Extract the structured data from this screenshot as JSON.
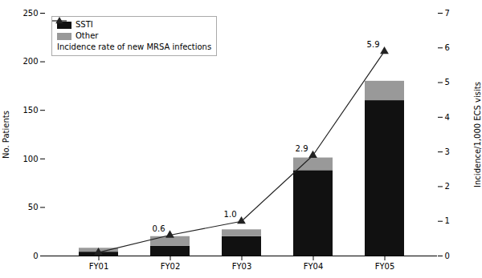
{
  "chart_data": {
    "type": "bar",
    "stacked": true,
    "categories": [
      "FY01",
      "FY02",
      "FY03",
      "FY04",
      "FY05"
    ],
    "series": [
      {
        "name": "SSTI",
        "color": "#111111",
        "values": [
          4,
          10,
          20,
          88,
          160
        ]
      },
      {
        "name": "Other",
        "color": "#999999",
        "values": [
          4,
          10,
          7,
          13,
          20
        ]
      },
      {
        "name": "Incidence rate of new MRSA infections",
        "type": "line",
        "axis": "y2",
        "color": "#222222",
        "marker": "triangle",
        "values": [
          0.1,
          0.6,
          1.0,
          2.9,
          5.9
        ],
        "data_labels": true,
        "value_labels": [
          null,
          "0.6",
          "1.0",
          "2.9",
          "5.9"
        ]
      }
    ],
    "ylim": [
      0,
      250
    ],
    "yticks": [
      0,
      50,
      100,
      150,
      200,
      250
    ],
    "y2lim": [
      0,
      7
    ],
    "y2ticks": [
      0,
      1,
      2,
      3,
      4,
      5,
      6,
      7
    ],
    "ylabel": "No. Patients",
    "y2label": "Incidence/1,000 ECS visits",
    "legend": "upper left"
  }
}
